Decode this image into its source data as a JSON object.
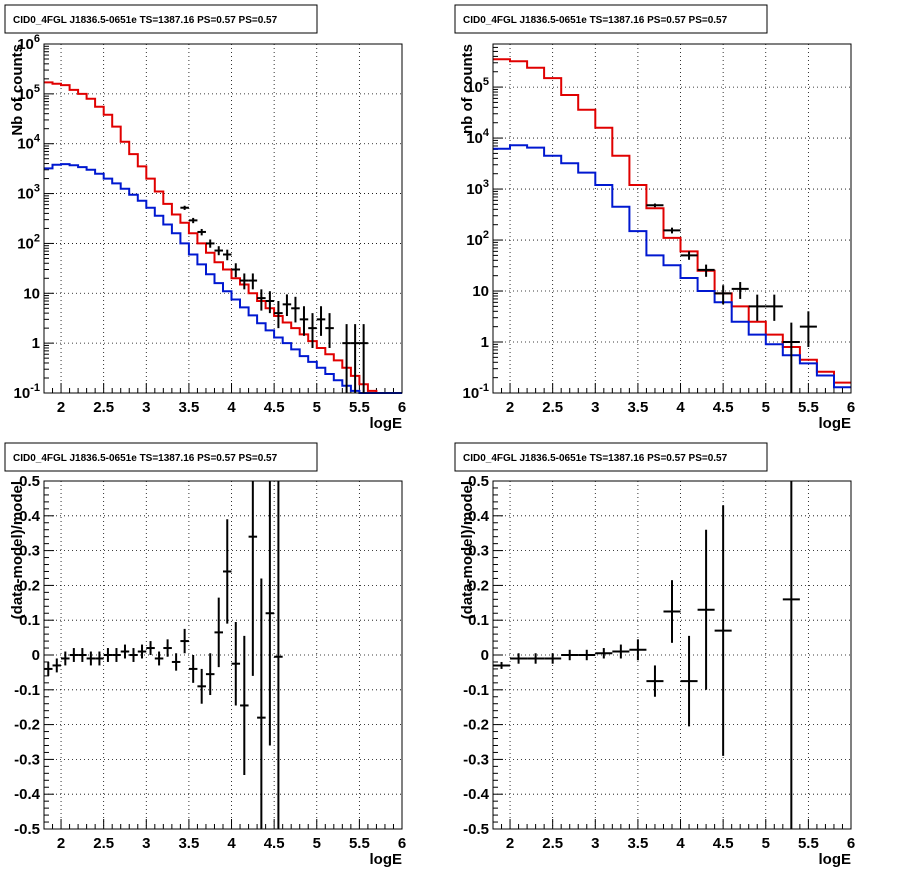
{
  "colors": {
    "data": "#000000",
    "total_model": "#e00000",
    "source_model": "#0018d0",
    "grid": "#000000"
  },
  "chart_data": [
    {
      "id": "counts-left",
      "type": "line",
      "title": "CID0_4FGL J1836.5-0651e TS=1387.16 PS=0.57 PS=0.57",
      "xlabel": "logE",
      "ylabel": "Nb of counts",
      "xlim": [
        1.8,
        6.0
      ],
      "ylim": [
        0.1,
        1000000
      ],
      "yscale": "log",
      "grid": true,
      "x_ticks": [
        2,
        2.5,
        3,
        3.5,
        4,
        4.5,
        5,
        5.5,
        6
      ],
      "y_ticks": [
        {
          "v": 0.1,
          "base": "10",
          "exp": "-1"
        },
        {
          "v": 1,
          "label": "1"
        },
        {
          "v": 10,
          "label": "10"
        },
        {
          "v": 100,
          "base": "10",
          "exp": "2"
        },
        {
          "v": 1000,
          "base": "10",
          "exp": "3"
        },
        {
          "v": 10000,
          "base": "10",
          "exp": "4"
        },
        {
          "v": 100000,
          "base": "10",
          "exp": "5"
        },
        {
          "v": 1000000,
          "base": "10",
          "exp": "6"
        }
      ],
      "bin_edges": [
        1.8,
        1.9,
        2.0,
        2.1,
        2.2,
        2.3,
        2.4,
        2.5,
        2.6,
        2.7,
        2.8,
        2.9,
        3.0,
        3.1,
        3.2,
        3.3,
        3.4,
        3.5,
        3.6,
        3.7,
        3.8,
        3.9,
        4.0,
        4.1,
        4.2,
        4.3,
        4.4,
        4.5,
        4.6,
        4.7,
        4.8,
        4.9,
        5.0,
        5.1,
        5.2,
        5.3,
        5.4,
        5.5,
        5.6,
        5.7,
        5.8,
        5.9,
        6.0
      ],
      "series": [
        {
          "color": "#e00000",
          "values": [
            170000,
            160000,
            150000,
            120000,
            100000,
            80000,
            55000,
            38000,
            22000,
            11000,
            6200,
            3500,
            2000,
            1100,
            620,
            380,
            260,
            160,
            100,
            65,
            42,
            30,
            20,
            15,
            10,
            7,
            5,
            3.5,
            2.6,
            2.0,
            1.5,
            1.1,
            0.8,
            0.6,
            0.45,
            0.32,
            0.22,
            0.15,
            0.11,
            0.1,
            0.1,
            0.1
          ]
        },
        {
          "color": "#0018d0",
          "values": [
            3200,
            3800,
            3900,
            3700,
            3400,
            3000,
            2500,
            2000,
            1600,
            1250,
            950,
            720,
            520,
            360,
            240,
            160,
            100,
            60,
            38,
            24,
            16,
            11,
            7.5,
            5.2,
            3.6,
            2.5,
            1.8,
            1.3,
            1.0,
            0.75,
            0.55,
            0.42,
            0.32,
            0.24,
            0.18,
            0.14,
            0.11,
            0.1,
            0.1,
            0.1,
            0.1,
            0.1
          ]
        }
      ],
      "points": [
        {
          "x": 3.45,
          "y": 520,
          "xerr": 0.05,
          "lo": 470,
          "hi": 570
        },
        {
          "x": 3.55,
          "y": 290,
          "xerr": 0.05,
          "lo": 255,
          "hi": 325
        },
        {
          "x": 3.65,
          "y": 170,
          "xerr": 0.05,
          "lo": 145,
          "hi": 195
        },
        {
          "x": 3.75,
          "y": 100,
          "xerr": 0.05,
          "lo": 82,
          "hi": 120
        },
        {
          "x": 3.85,
          "y": 72,
          "xerr": 0.05,
          "lo": 58,
          "hi": 88
        },
        {
          "x": 3.95,
          "y": 60,
          "xerr": 0.05,
          "lo": 46,
          "hi": 75
        },
        {
          "x": 4.05,
          "y": 30,
          "xerr": 0.05,
          "lo": 21,
          "hi": 40
        },
        {
          "x": 4.15,
          "y": 18,
          "xerr": 0.05,
          "lo": 12,
          "hi": 25
        },
        {
          "x": 4.25,
          "y": 18,
          "xerr": 0.05,
          "lo": 12,
          "hi": 25
        },
        {
          "x": 4.35,
          "y": 8,
          "xerr": 0.05,
          "lo": 4.5,
          "hi": 12
        },
        {
          "x": 4.45,
          "y": 7,
          "xerr": 0.05,
          "lo": 4,
          "hi": 11
        },
        {
          "x": 4.55,
          "y": 4,
          "xerr": 0.05,
          "lo": 2,
          "hi": 7
        },
        {
          "x": 4.65,
          "y": 6,
          "xerr": 0.05,
          "lo": 3.5,
          "hi": 9.5
        },
        {
          "x": 4.75,
          "y": 5,
          "xerr": 0.05,
          "lo": 2.6,
          "hi": 8.5
        },
        {
          "x": 4.85,
          "y": 3,
          "xerr": 0.05,
          "lo": 1.4,
          "hi": 5.5
        },
        {
          "x": 4.95,
          "y": 2,
          "xerr": 0.05,
          "lo": 0.8,
          "hi": 4
        },
        {
          "x": 5.05,
          "y": 3,
          "xerr": 0.05,
          "lo": 1.4,
          "hi": 5.5
        },
        {
          "x": 5.15,
          "y": 2,
          "xerr": 0.05,
          "lo": 0.8,
          "hi": 4
        },
        {
          "x": 5.35,
          "y": 1,
          "xerr": 0.05,
          "lo": 0.1,
          "hi": 2.4
        },
        {
          "x": 5.45,
          "y": 1,
          "xerr": 0.05,
          "lo": 0.1,
          "hi": 2.4
        },
        {
          "x": 5.55,
          "y": 1,
          "xerr": 0.05,
          "lo": 0.1,
          "hi": 2.4
        }
      ]
    },
    {
      "id": "counts-right",
      "type": "line",
      "title": "CID0_4FGL J1836.5-0651e TS=1387.16 PS=0.57 PS=0.57",
      "xlabel": "logE",
      "ylabel": "nb of counts",
      "xlim": [
        1.8,
        6.0
      ],
      "ylim": [
        0.1,
        700000
      ],
      "yscale": "log",
      "grid": true,
      "x_ticks": [
        2,
        2.5,
        3,
        3.5,
        4,
        4.5,
        5,
        5.5,
        6
      ],
      "y_ticks": [
        {
          "v": 0.1,
          "base": "10",
          "exp": "-1"
        },
        {
          "v": 1,
          "label": "1"
        },
        {
          "v": 10,
          "label": "10"
        },
        {
          "v": 100,
          "base": "10",
          "exp": "2"
        },
        {
          "v": 1000,
          "base": "10",
          "exp": "3"
        },
        {
          "v": 10000,
          "base": "10",
          "exp": "4"
        },
        {
          "v": 100000,
          "base": "10",
          "exp": "5"
        }
      ],
      "bin_edges": [
        1.8,
        2.0,
        2.2,
        2.4,
        2.6,
        2.8,
        3.0,
        3.2,
        3.4,
        3.6,
        3.8,
        4.0,
        4.2,
        4.4,
        4.6,
        4.8,
        5.0,
        5.2,
        5.4,
        5.6,
        5.8,
        6.0
      ],
      "series": [
        {
          "color": "#e00000",
          "values": [
            350000,
            320000,
            240000,
            150000,
            70000,
            36000,
            16000,
            4500,
            1200,
            420,
            110,
            60,
            25,
            9,
            5,
            2.5,
            1.4,
            0.8,
            0.45,
            0.26,
            0.16
          ]
        },
        {
          "color": "#0018d0",
          "values": [
            6200,
            7200,
            6500,
            4500,
            3200,
            2100,
            1200,
            450,
            150,
            50,
            32,
            18,
            10,
            6,
            2.5,
            1.4,
            0.9,
            0.55,
            0.38,
            0.22,
            0.13
          ]
        }
      ],
      "points": [
        {
          "x": 3.7,
          "y": 480,
          "xerr": 0.1,
          "lo": 440,
          "hi": 520
        },
        {
          "x": 3.9,
          "y": 155,
          "xerr": 0.1,
          "lo": 135,
          "hi": 175
        },
        {
          "x": 4.1,
          "y": 50,
          "xerr": 0.1,
          "lo": 41,
          "hi": 60
        },
        {
          "x": 4.3,
          "y": 26,
          "xerr": 0.1,
          "lo": 19,
          "hi": 33
        },
        {
          "x": 4.5,
          "y": 9,
          "xerr": 0.1,
          "lo": 5.5,
          "hi": 13
        },
        {
          "x": 4.7,
          "y": 11,
          "xerr": 0.1,
          "lo": 7,
          "hi": 15
        },
        {
          "x": 4.9,
          "y": 5,
          "xerr": 0.1,
          "lo": 2.6,
          "hi": 8.5
        },
        {
          "x": 5.1,
          "y": 5,
          "xerr": 0.1,
          "lo": 2.6,
          "hi": 8.5
        },
        {
          "x": 5.3,
          "y": 1,
          "xerr": 0.1,
          "lo": 0.1,
          "hi": 2.4
        },
        {
          "x": 5.5,
          "y": 2,
          "xerr": 0.1,
          "lo": 0.8,
          "hi": 4
        }
      ]
    },
    {
      "id": "residuals-left",
      "type": "scatter",
      "title": "CID0_4FGL J1836.5-0651e TS=1387.16 PS=0.57 PS=0.57",
      "xlabel": "logE",
      "ylabel": "(data-model)/model",
      "xlim": [
        1.8,
        6.0
      ],
      "ylim": [
        -0.5,
        0.5
      ],
      "grid": true,
      "x_ticks": [
        2,
        2.5,
        3,
        3.5,
        4,
        4.5,
        5,
        5.5,
        6
      ],
      "y_ticks": [
        -0.5,
        -0.4,
        -0.3,
        -0.2,
        -0.1,
        0,
        0.1,
        0.2,
        0.3,
        0.4,
        0.5
      ],
      "points": [
        {
          "x": 1.85,
          "y": -0.04,
          "xerr": 0.05,
          "err": 0.02
        },
        {
          "x": 1.95,
          "y": -0.03,
          "xerr": 0.05,
          "err": 0.02
        },
        {
          "x": 2.05,
          "y": -0.01,
          "xerr": 0.05,
          "err": 0.02
        },
        {
          "x": 2.15,
          "y": 0.0,
          "xerr": 0.05,
          "err": 0.02
        },
        {
          "x": 2.25,
          "y": 0.0,
          "xerr": 0.05,
          "err": 0.02
        },
        {
          "x": 2.35,
          "y": -0.01,
          "xerr": 0.05,
          "err": 0.02
        },
        {
          "x": 2.45,
          "y": -0.01,
          "xerr": 0.05,
          "err": 0.02
        },
        {
          "x": 2.55,
          "y": 0.0,
          "xerr": 0.05,
          "err": 0.02
        },
        {
          "x": 2.65,
          "y": 0.0,
          "xerr": 0.05,
          "err": 0.02
        },
        {
          "x": 2.75,
          "y": 0.01,
          "xerr": 0.05,
          "err": 0.02
        },
        {
          "x": 2.85,
          "y": 0.0,
          "xerr": 0.05,
          "err": 0.02
        },
        {
          "x": 2.95,
          "y": 0.01,
          "xerr": 0.05,
          "err": 0.02
        },
        {
          "x": 3.05,
          "y": 0.02,
          "xerr": 0.05,
          "err": 0.02
        },
        {
          "x": 3.15,
          "y": -0.01,
          "xerr": 0.05,
          "err": 0.02
        },
        {
          "x": 3.25,
          "y": 0.02,
          "xerr": 0.05,
          "err": 0.025
        },
        {
          "x": 3.35,
          "y": -0.02,
          "xerr": 0.05,
          "err": 0.025
        },
        {
          "x": 3.45,
          "y": 0.04,
          "xerr": 0.05,
          "err": 0.035
        },
        {
          "x": 3.55,
          "y": -0.04,
          "xerr": 0.05,
          "err": 0.04
        },
        {
          "x": 3.65,
          "y": -0.09,
          "xerr": 0.05,
          "err": 0.05
        },
        {
          "x": 3.75,
          "y": -0.055,
          "xerr": 0.05,
          "err": 0.06
        },
        {
          "x": 3.85,
          "y": 0.065,
          "xerr": 0.05,
          "err": 0.1
        },
        {
          "x": 3.95,
          "y": 0.24,
          "xerr": 0.05,
          "err": 0.15
        },
        {
          "x": 4.05,
          "y": -0.025,
          "xerr": 0.05,
          "err": 0.12
        },
        {
          "x": 4.15,
          "y": -0.145,
          "xerr": 0.05,
          "err": 0.2
        },
        {
          "x": 4.25,
          "y": 0.34,
          "xerr": 0.05,
          "err": 0.4
        },
        {
          "x": 4.35,
          "y": -0.18,
          "xerr": 0.05,
          "err": 0.4
        },
        {
          "x": 4.45,
          "y": 0.12,
          "xerr": 0.05,
          "err": 0.38
        },
        {
          "x": 4.55,
          "y": -0.005,
          "xerr": 0.05,
          "err": 0.6
        }
      ]
    },
    {
      "id": "residuals-right",
      "type": "scatter",
      "title": "CID0_4FGL J1836.5-0651e TS=1387.16 PS=0.57 PS=0.57",
      "xlabel": "logE",
      "ylabel": "(data-model)/model",
      "xlim": [
        1.8,
        6.0
      ],
      "ylim": [
        -0.5,
        0.5
      ],
      "grid": true,
      "x_ticks": [
        2,
        2.5,
        3,
        3.5,
        4,
        4.5,
        5,
        5.5,
        6
      ],
      "y_ticks": [
        -0.5,
        -0.4,
        -0.3,
        -0.2,
        -0.1,
        0,
        0.1,
        0.2,
        0.3,
        0.4,
        0.5
      ],
      "points": [
        {
          "x": 1.9,
          "y": -0.03,
          "xerr": 0.1,
          "err": 0.01
        },
        {
          "x": 2.1,
          "y": -0.01,
          "xerr": 0.1,
          "err": 0.015
        },
        {
          "x": 2.3,
          "y": -0.01,
          "xerr": 0.1,
          "err": 0.015
        },
        {
          "x": 2.5,
          "y": -0.01,
          "xerr": 0.1,
          "err": 0.015
        },
        {
          "x": 2.7,
          "y": 0.0,
          "xerr": 0.1,
          "err": 0.015
        },
        {
          "x": 2.9,
          "y": 0.0,
          "xerr": 0.1,
          "err": 0.015
        },
        {
          "x": 3.1,
          "y": 0.005,
          "xerr": 0.1,
          "err": 0.015
        },
        {
          "x": 3.3,
          "y": 0.01,
          "xerr": 0.1,
          "err": 0.02
        },
        {
          "x": 3.5,
          "y": 0.015,
          "xerr": 0.1,
          "err": 0.03
        },
        {
          "x": 3.7,
          "y": -0.075,
          "xerr": 0.1,
          "err": 0.045
        },
        {
          "x": 3.9,
          "y": 0.125,
          "xerr": 0.1,
          "err": 0.09
        },
        {
          "x": 4.1,
          "y": -0.075,
          "xerr": 0.1,
          "err": 0.13
        },
        {
          "x": 4.3,
          "y": 0.13,
          "xerr": 0.1,
          "err": 0.23
        },
        {
          "x": 4.5,
          "y": 0.07,
          "xerr": 0.1,
          "err": 0.36
        },
        {
          "x": 5.3,
          "y": 0.16,
          "xerr": 0.1,
          "err": 0.7
        }
      ]
    }
  ]
}
